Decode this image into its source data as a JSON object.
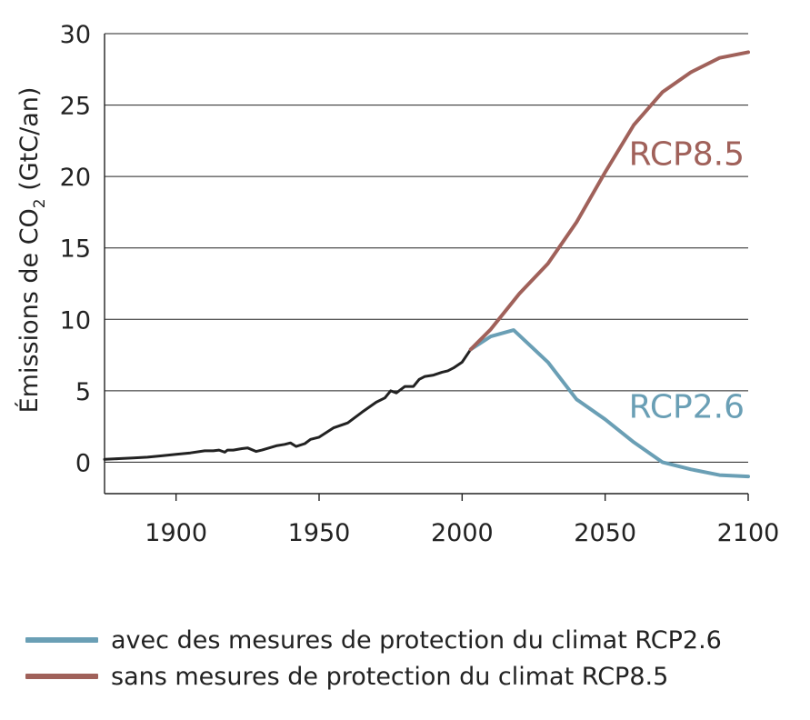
{
  "chart_data": {
    "type": "line",
    "title": "",
    "ylabel": "Émissions de CO2 (GtC/an)",
    "ylabel_main": "Émissions de CO",
    "ylabel_sub": "2",
    "ylabel_tail": " (GtC/an)",
    "xlim": [
      1875,
      2100
    ],
    "ylim": [
      -2.2,
      30
    ],
    "yticks": [
      0,
      5,
      10,
      15,
      20,
      25,
      30
    ],
    "xticks": [
      1900,
      1950,
      2000,
      2050,
      2100
    ],
    "grid": "horizontal",
    "legend_position": "bottom",
    "series": [
      {
        "key": "historical",
        "color": "#222222",
        "x": [
          1875,
          1880,
          1885,
          1890,
          1895,
          1900,
          1905,
          1910,
          1913,
          1915,
          1917,
          1918,
          1920,
          1923,
          1925,
          1928,
          1930,
          1935,
          1938,
          1940,
          1942,
          1945,
          1947,
          1950,
          1955,
          1960,
          1965,
          1970,
          1973,
          1975,
          1977,
          1980,
          1983,
          1985,
          1987,
          1990,
          1993,
          1995,
          1997,
          2000,
          2003
        ],
        "y": [
          0.2,
          0.25,
          0.3,
          0.35,
          0.45,
          0.55,
          0.65,
          0.8,
          0.8,
          0.85,
          0.7,
          0.85,
          0.85,
          0.95,
          1.0,
          0.75,
          0.85,
          1.15,
          1.25,
          1.35,
          1.1,
          1.3,
          1.6,
          1.75,
          2.4,
          2.75,
          3.5,
          4.2,
          4.5,
          5.0,
          4.85,
          5.3,
          5.3,
          5.8,
          6.0,
          6.1,
          6.3,
          6.4,
          6.6,
          7.0,
          7.9
        ]
      },
      {
        "key": "rcp26",
        "name": "RCP2.6",
        "color": "#6a9fb5",
        "x": [
          2003,
          2010,
          2018,
          2030,
          2040,
          2050,
          2060,
          2070,
          2080,
          2090,
          2100
        ],
        "y": [
          7.9,
          8.8,
          9.25,
          7.0,
          4.4,
          3.0,
          1.4,
          0.0,
          -0.5,
          -0.9,
          -1.0
        ]
      },
      {
        "key": "rcp85",
        "name": "RCP8.5",
        "color": "#a0615a",
        "x": [
          2003,
          2010,
          2020,
          2030,
          2040,
          2050,
          2060,
          2070,
          2080,
          2090,
          2100
        ],
        "y": [
          7.9,
          9.3,
          11.8,
          13.9,
          16.8,
          20.3,
          23.6,
          25.9,
          27.3,
          28.3,
          28.7
        ]
      }
    ],
    "annotations": [
      {
        "text": "RCP8.5",
        "series": "rcp85"
      },
      {
        "text": "RCP2.6",
        "series": "rcp26"
      }
    ]
  },
  "legend": [
    {
      "label": "avec des mesures de protection du climat RCP2.6",
      "color": "#6a9fb5"
    },
    {
      "label": "sans mesures de protection du climat RCP8.5",
      "color": "#a0615a"
    }
  ]
}
